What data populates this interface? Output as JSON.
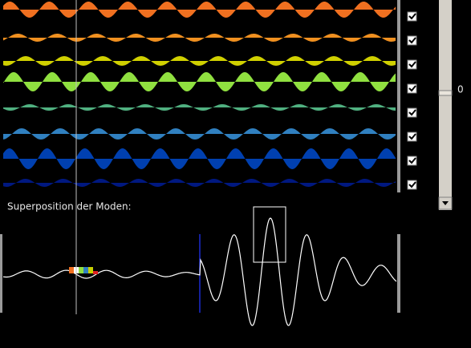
{
  "superposition_label": "Superposition der Moden:",
  "slider": {
    "value": 0
  },
  "modes": [
    {
      "checked": true
    },
    {
      "checked": true
    },
    {
      "checked": true
    },
    {
      "checked": true
    },
    {
      "checked": true
    },
    {
      "checked": true
    },
    {
      "checked": true
    },
    {
      "checked": true
    }
  ]
}
